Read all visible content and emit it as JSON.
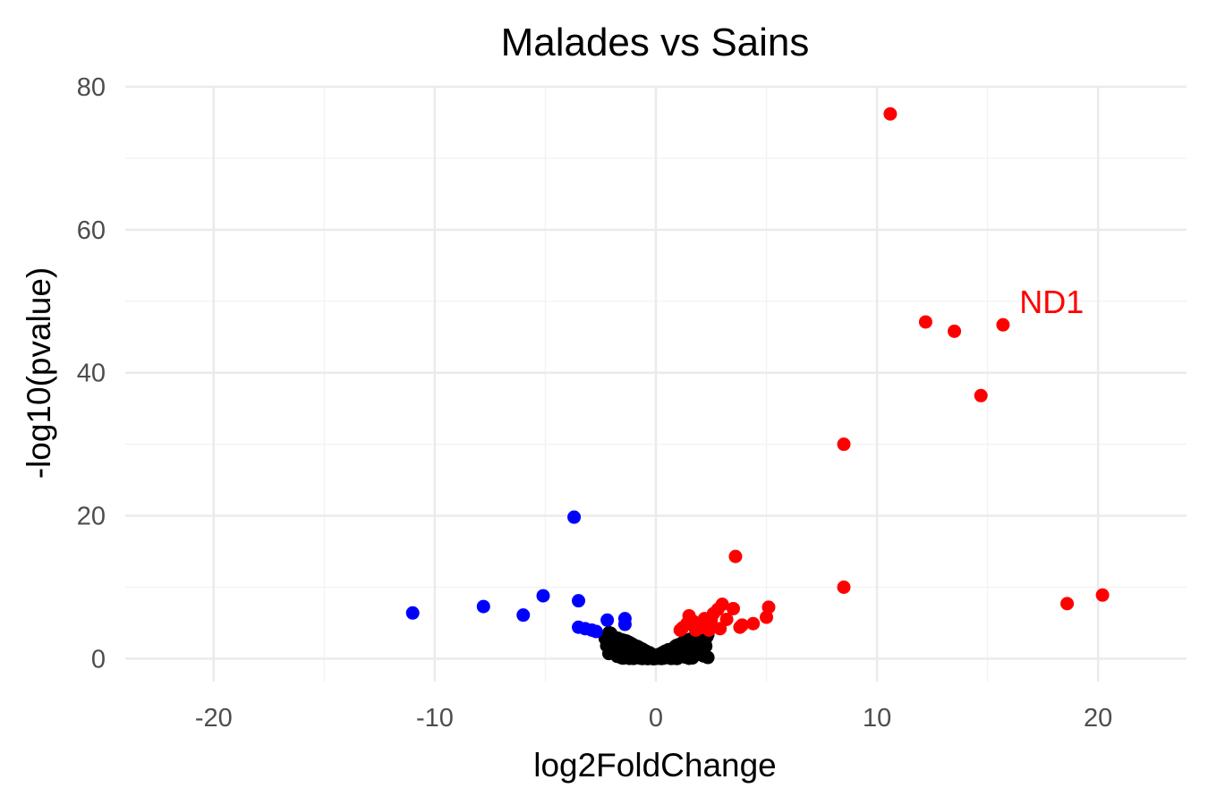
{
  "chart_data": {
    "type": "scatter",
    "title": "Malades vs Sains",
    "xlabel": "log2FoldChange",
    "ylabel": "-log10(pvalue)",
    "xlim": [
      -24,
      24
    ],
    "ylim": [
      -3.2,
      80
    ],
    "x_ticks": [
      -20,
      -10,
      0,
      10,
      20
    ],
    "x_tick_labels": [
      "-20",
      "-10",
      "0",
      "10",
      "20"
    ],
    "y_ticks": [
      0,
      20,
      40,
      60,
      80
    ],
    "y_tick_labels": [
      "0",
      "20",
      "40",
      "60",
      "80"
    ],
    "grid": true,
    "legend": "none",
    "colors": {
      "up": "#ff0000",
      "down": "#0000ff",
      "ns": "#000000"
    },
    "series": [
      {
        "group": "up",
        "color": "#ff0000",
        "points": [
          [
            10.6,
            76.2
          ],
          [
            12.2,
            47.1
          ],
          [
            13.5,
            45.8
          ],
          [
            15.7,
            46.7
          ],
          [
            14.7,
            36.8
          ],
          [
            8.5,
            30.0
          ],
          [
            8.5,
            10.0
          ],
          [
            3.6,
            14.3
          ],
          [
            18.6,
            7.7
          ],
          [
            20.2,
            8.9
          ],
          [
            5.1,
            7.2
          ],
          [
            5.0,
            5.8
          ],
          [
            4.4,
            4.9
          ],
          [
            3.9,
            4.7
          ],
          [
            3.8,
            4.4
          ],
          [
            3.5,
            7.0
          ],
          [
            3.0,
            7.6
          ],
          [
            2.8,
            6.9
          ],
          [
            2.6,
            6.3
          ],
          [
            2.5,
            5.4
          ],
          [
            2.3,
            4.8
          ],
          [
            2.0,
            4.3
          ],
          [
            1.8,
            4.0
          ],
          [
            1.5,
            6.0
          ],
          [
            1.4,
            4.9
          ],
          [
            1.2,
            4.3
          ],
          [
            1.1,
            4.0
          ],
          [
            3.2,
            5.5
          ],
          [
            2.9,
            4.2
          ],
          [
            2.2,
            5.6
          ],
          [
            1.7,
            5.2
          ],
          [
            2.4,
            4.0
          ]
        ]
      },
      {
        "group": "down",
        "color": "#0000ff",
        "points": [
          [
            -3.7,
            19.8
          ],
          [
            -11.0,
            6.4
          ],
          [
            -7.8,
            7.3
          ],
          [
            -6.0,
            6.1
          ],
          [
            -5.1,
            8.8
          ],
          [
            -3.5,
            8.1
          ],
          [
            -3.5,
            4.4
          ],
          [
            -3.2,
            4.2
          ],
          [
            -2.9,
            4.0
          ],
          [
            -2.7,
            3.8
          ],
          [
            -2.2,
            5.4
          ],
          [
            -1.4,
            5.6
          ],
          [
            -1.4,
            4.8
          ]
        ]
      }
    ],
    "ns_cloud": {
      "x_range": [
        -2.5,
        2.5
      ],
      "count": 600,
      "note": "dense V-shaped cloud of non-significant points near the origin"
    },
    "annotations": [
      {
        "text": "ND1",
        "x": 17.9,
        "y": 50.0,
        "color": "#ff0000"
      }
    ]
  }
}
